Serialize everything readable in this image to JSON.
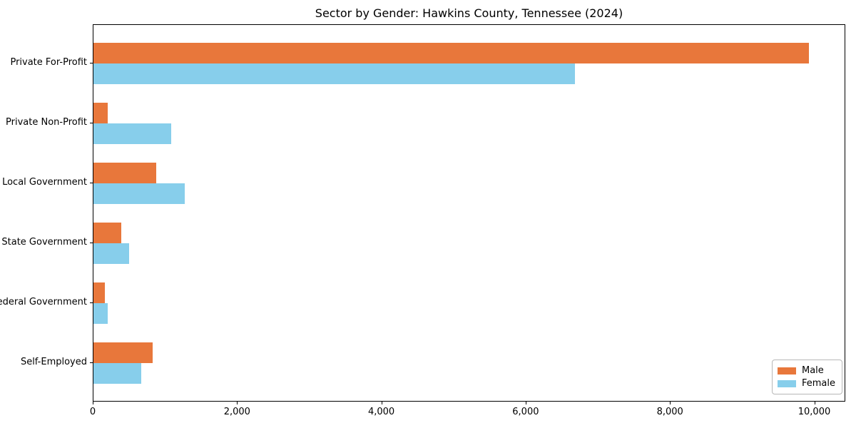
{
  "chart_data": {
    "type": "bar",
    "orientation": "horizontal",
    "title": "Sector by Gender: Hawkins County, Tennessee (2024)",
    "categories": [
      "Private For-Profit",
      "Private Non-Profit",
      "Local Government",
      "State Government",
      "Federal Government",
      "Self-Employed"
    ],
    "series": [
      {
        "name": "Male",
        "color": "#e8773b",
        "values": [
          9930,
          200,
          870,
          390,
          160,
          820
        ]
      },
      {
        "name": "Female",
        "color": "#87ceeb",
        "values": [
          6690,
          1080,
          1270,
          500,
          200,
          660
        ]
      }
    ],
    "xlabel": "",
    "ylabel": "",
    "xlim": [
      0,
      10430
    ],
    "x_ticks": [
      0,
      2000,
      4000,
      6000,
      8000,
      10000
    ],
    "x_tick_labels": [
      "0",
      "2,000",
      "4,000",
      "6,000",
      "8,000",
      "10,000"
    ],
    "grid": false,
    "legend": {
      "position": "lower-right",
      "entries": [
        "Male",
        "Female"
      ]
    },
    "colors": {
      "background": "#ffffff",
      "axis": "#000000",
      "male": "#e8773b",
      "female": "#87ceeb"
    }
  }
}
